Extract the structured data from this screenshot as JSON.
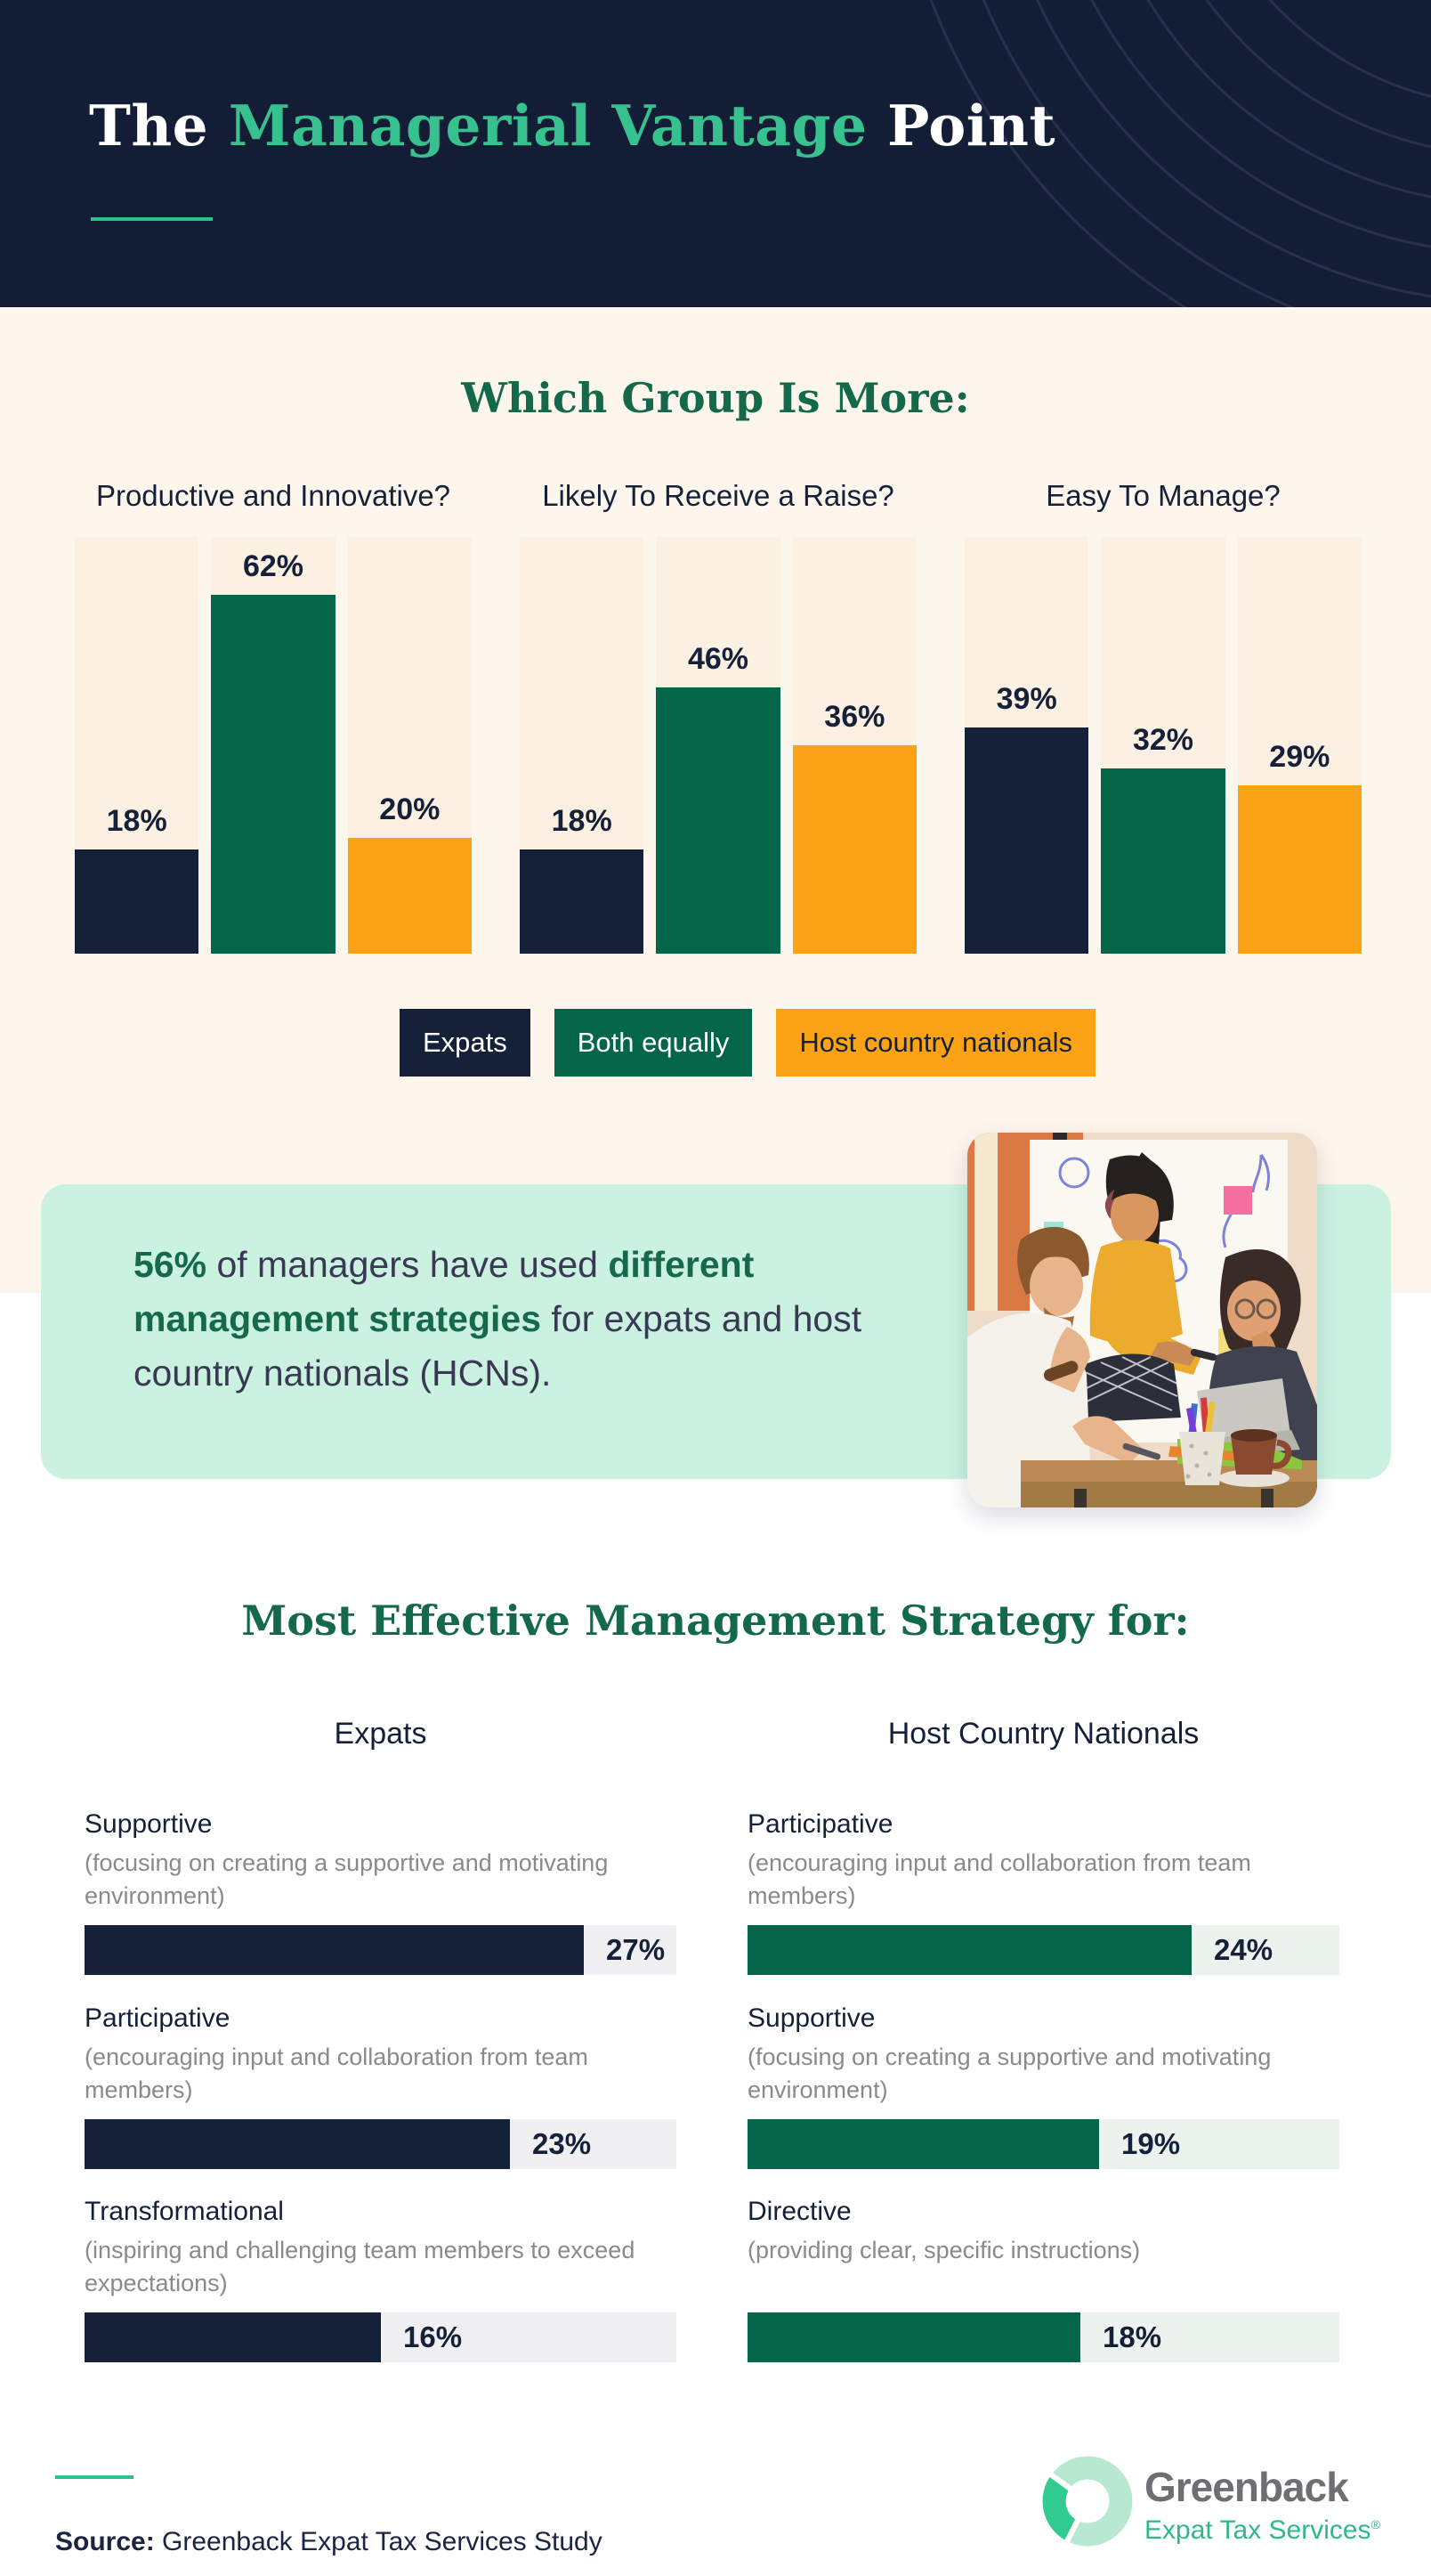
{
  "header": {
    "title_prefix": "The ",
    "title_highlight": "Managerial Vantage",
    "title_suffix": " Point"
  },
  "section1": {
    "heading": "Which Group Is More:",
    "charts": [
      {
        "title": "Productive and Innovative?",
        "bars": [
          {
            "label": "18%",
            "value": 18,
            "color": "#152039"
          },
          {
            "label": "62%",
            "value": 62,
            "color": "#046649"
          },
          {
            "label": "20%",
            "value": 20,
            "color": "#fca315"
          }
        ]
      },
      {
        "title": "Likely To Receive a Raise?",
        "bars": [
          {
            "label": "18%",
            "value": 18,
            "color": "#152039"
          },
          {
            "label": "46%",
            "value": 46,
            "color": "#046649"
          },
          {
            "label": "36%",
            "value": 36,
            "color": "#fca315"
          }
        ]
      },
      {
        "title": "Easy To Manage?",
        "bars": [
          {
            "label": "39%",
            "value": 39,
            "color": "#152039"
          },
          {
            "label": "32%",
            "value": 32,
            "color": "#046649"
          },
          {
            "label": "29%",
            "value": 29,
            "color": "#fca315"
          }
        ]
      }
    ],
    "legend": [
      {
        "label": "Expats",
        "bg": "#152039",
        "fg": "#ffffff"
      },
      {
        "label": "Both equally",
        "bg": "#046649",
        "fg": "#ffffff"
      },
      {
        "label": "Host country nationals",
        "bg": "#fca315",
        "fg": "#152039"
      }
    ]
  },
  "callout": {
    "segments": [
      {
        "text": "56%",
        "bold": true
      },
      {
        "text": " of managers have used ",
        "bold": false
      },
      {
        "text": "different management strategies",
        "bold": true
      },
      {
        "text": " for expats and host country nationals (HCNs).",
        "bold": false
      }
    ]
  },
  "section2": {
    "heading": "Most Effective Management Strategy for:",
    "columns": [
      {
        "header": "Expats",
        "accent": "#152039",
        "track": "#f0eff1",
        "items": [
          {
            "title": "Supportive",
            "desc": "(focusing on creating a supportive and motivating environment)",
            "label": "27%",
            "value": 27
          },
          {
            "title": "Participative",
            "desc": "(encouraging input and collaboration from team members)",
            "label": "23%",
            "value": 23
          },
          {
            "title": "Transformational",
            "desc": "(inspiring and challenging team members to exceed expectations)",
            "label": "16%",
            "value": 16
          }
        ]
      },
      {
        "header": "Host Country Nationals",
        "accent": "#046649",
        "track": "#ecf2ee",
        "items": [
          {
            "title": "Participative",
            "desc": "(encouraging input and collaboration from team members)",
            "label": "24%",
            "value": 24
          },
          {
            "title": "Supportive",
            "desc": "(focusing on creating a supportive and motivating environment)",
            "label": "19%",
            "value": 19
          },
          {
            "title": "Directive",
            "desc": "(providing clear, specific instructions)",
            "label": "18%",
            "value": 18
          }
        ]
      }
    ]
  },
  "footer": {
    "source_label": "Source:",
    "source_text": " Greenback Expat Tax Services Study",
    "logo_name": "Greenback",
    "logo_sub": "Expat Tax Services",
    "logo_reg": "®"
  },
  "chart_data": [
    {
      "type": "bar",
      "title": "Which Group Is More:",
      "categories": [
        "Productive and Innovative?",
        "Likely To Receive a Raise?",
        "Easy To Manage?"
      ],
      "series": [
        {
          "name": "Expats",
          "color": "#152039",
          "values": [
            18,
            18,
            39
          ]
        },
        {
          "name": "Both equally",
          "color": "#046649",
          "values": [
            62,
            46,
            32
          ]
        },
        {
          "name": "Host country nationals",
          "color": "#fca315",
          "values": [
            20,
            36,
            29
          ]
        }
      ],
      "ylabel": "",
      "xlabel": "",
      "ylim": [
        0,
        72
      ],
      "grid": false,
      "legend_position": "bottom",
      "value_labels": "percent above bars"
    },
    {
      "type": "bar",
      "title": "Most Effective Management Strategy for:",
      "groups": [
        {
          "name": "Expats",
          "color": "#152039",
          "categories": [
            "Supportive",
            "Participative",
            "Transformational"
          ],
          "values": [
            27,
            23,
            16
          ]
        },
        {
          "name": "Host Country Nationals",
          "color": "#046649",
          "categories": [
            "Participative",
            "Supportive",
            "Directive"
          ],
          "values": [
            24,
            19,
            18
          ]
        }
      ],
      "orientation": "horizontal",
      "xlim": [
        0,
        32
      ],
      "value_labels": "percent right of bars"
    }
  ]
}
